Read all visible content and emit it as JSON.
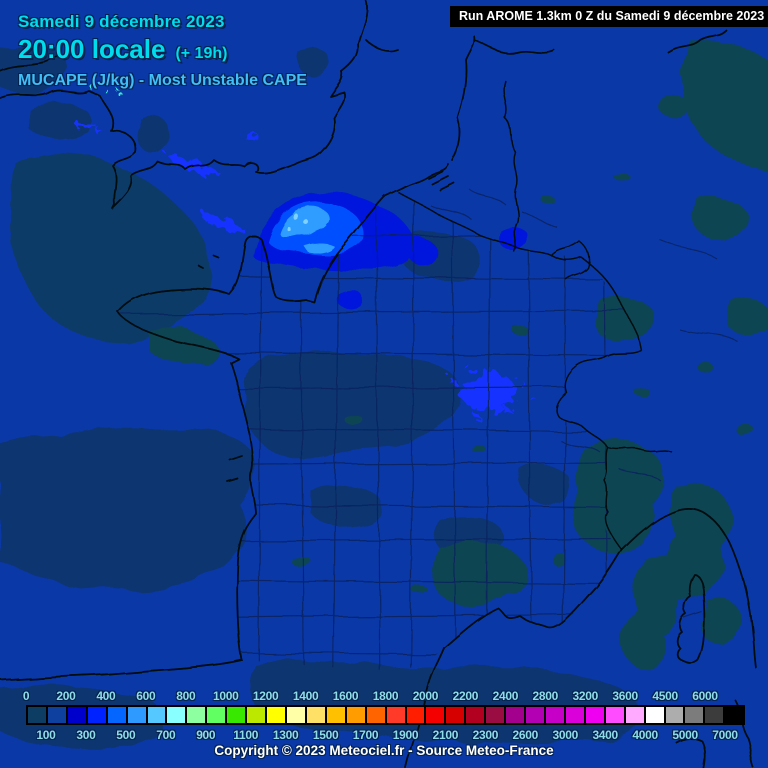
{
  "header": {
    "date_line": "Samedi 9 décembre 2023",
    "time_line": "20:00 locale",
    "time_offset": "(+ 19h)",
    "variable_line": "MUCAPE (J/kg) - Most Unstable CAPE",
    "run_info": "Run AROME 1.3km 0 Z du Samedi 9 décembre 2023"
  },
  "footer": {
    "copyright": "Copyright © 2023 Meteociel.fr - Source Meteo-France"
  },
  "colorbar": {
    "unit": "J/kg",
    "cells": [
      {
        "label": "0",
        "color": "#0e3d63"
      },
      {
        "label": "100",
        "color": "#0e409f"
      },
      {
        "label": "200",
        "color": "#0000cd"
      },
      {
        "label": "300",
        "color": "#0022ff"
      },
      {
        "label": "400",
        "color": "#0566ff"
      },
      {
        "label": "500",
        "color": "#2e9aff"
      },
      {
        "label": "600",
        "color": "#54c8ff"
      },
      {
        "label": "700",
        "color": "#8affff"
      },
      {
        "label": "800",
        "color": "#8dffa0"
      },
      {
        "label": "900",
        "color": "#62ff62"
      },
      {
        "label": "1000",
        "color": "#38e800"
      },
      {
        "label": "1100",
        "color": "#bce800"
      },
      {
        "label": "1200",
        "color": "#ffff00"
      },
      {
        "label": "1300",
        "color": "#ffffa8"
      },
      {
        "label": "1400",
        "color": "#ffe066"
      },
      {
        "label": "1500",
        "color": "#ffc000"
      },
      {
        "label": "1600",
        "color": "#ff9c00"
      },
      {
        "label": "1700",
        "color": "#ff6400"
      },
      {
        "label": "1800",
        "color": "#ff3a28"
      },
      {
        "label": "1900",
        "color": "#ff1e00"
      },
      {
        "label": "2000",
        "color": "#f40000"
      },
      {
        "label": "2100",
        "color": "#d60000"
      },
      {
        "label": "2200",
        "color": "#b20020"
      },
      {
        "label": "2300",
        "color": "#9a0d42"
      },
      {
        "label": "2400",
        "color": "#a4008e"
      },
      {
        "label": "2600",
        "color": "#b200b2"
      },
      {
        "label": "2800",
        "color": "#c600c6"
      },
      {
        "label": "3000",
        "color": "#da00da"
      },
      {
        "label": "3200",
        "color": "#f000f0"
      },
      {
        "label": "3400",
        "color": "#ff4cff"
      },
      {
        "label": "3600",
        "color": "#ffaaff"
      },
      {
        "label": "4000",
        "color": "#ffffff"
      },
      {
        "label": "4500",
        "color": "#adadad"
      },
      {
        "label": "5000",
        "color": "#7c7c7c"
      },
      {
        "label": "6000",
        "color": "#3c3c3c"
      },
      {
        "label": "7000",
        "color": "#000000"
      }
    ]
  },
  "colors": {
    "bg": "#0a38a6",
    "dark-patch": "#0f3570",
    "celtic-patch": "#103b68",
    "teal-patch": "#0e4552",
    "coast": "#000810",
    "dept-line": "#082460",
    "cape-1": "#0016dc",
    "cape-2": "#0450ff",
    "cape-3": "#2f9dff",
    "cape-4": "#7fd2ff",
    "cape-streak": "#1732ff",
    "cape-cyan": "#3fe8d8",
    "title-cyan": "#00dcec",
    "subtitle-blue": "#41bdf7",
    "scale-label": "#8fdce8",
    "outline": "#05234f",
    "run-bg": "#000000",
    "run-text": "#ffffff",
    "copy-text": "#ffffff"
  }
}
